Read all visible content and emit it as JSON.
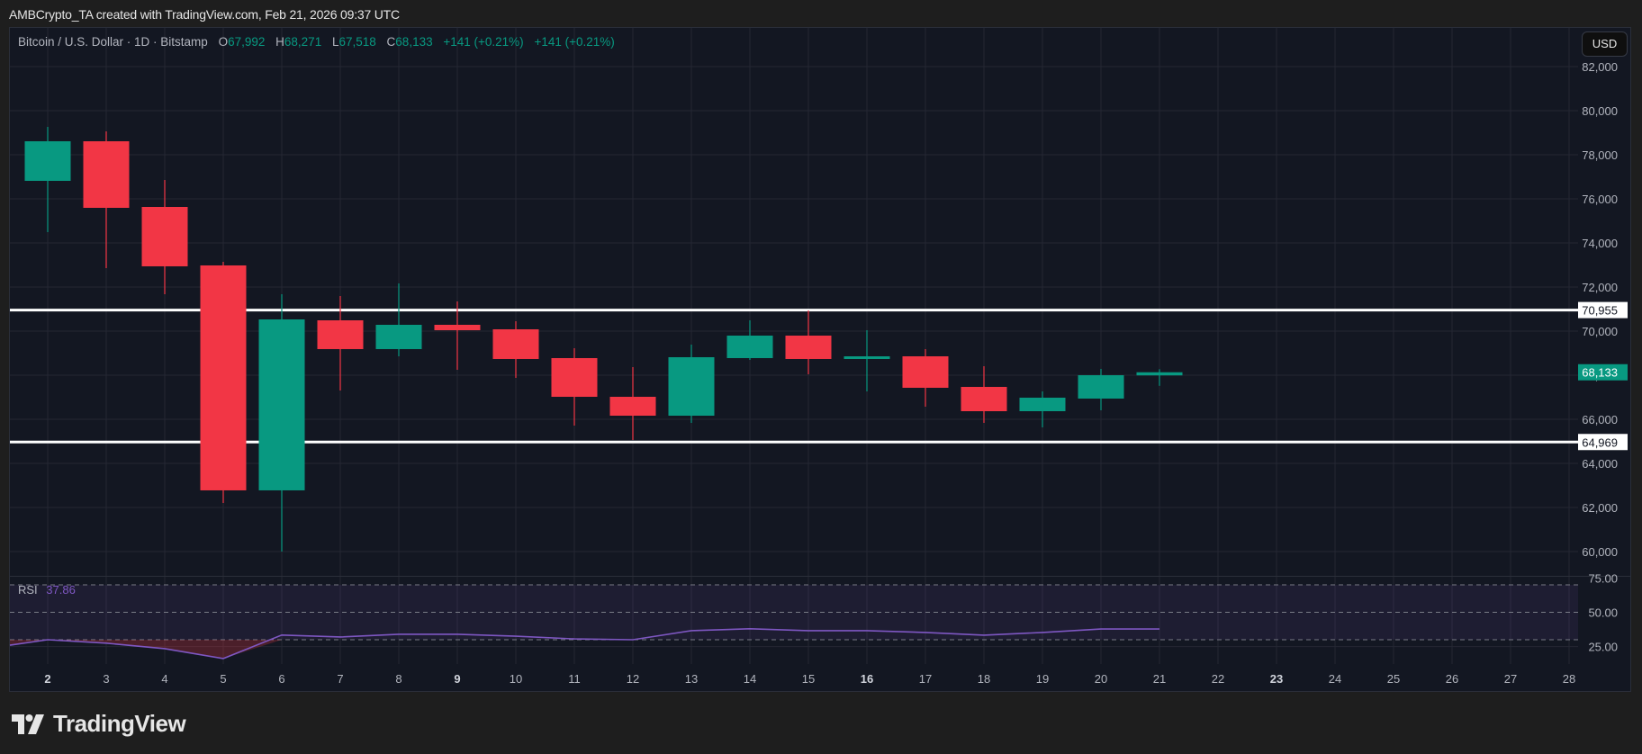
{
  "caption": "AMBCrypto_TA created with TradingView.com, Feb 21, 2026 09:37 UTC",
  "legend": {
    "symbol": "Bitcoin / U.S. Dollar · 1D · Bitstamp",
    "open_label": "O",
    "open": "67,992",
    "high_label": "H",
    "high": "68,271",
    "low_label": "L",
    "low": "67,518",
    "close_label": "C",
    "close": "68,133",
    "change1": "+141 (+0.21%)",
    "change2": "+141 (+0.21%)"
  },
  "currency_button": "USD",
  "rsi_legend": {
    "name": "RSI",
    "value": "37.86"
  },
  "brand": "TradingView",
  "colors": {
    "up": "#089981",
    "down": "#f23645",
    "background": "#131722",
    "grid": "#242733",
    "rsi_line": "#7e57c2",
    "level_line": "#ffffff",
    "axis_text": "#b2b5be"
  },
  "chart_data": {
    "type": "candlestick",
    "title": "Bitcoin / U.S. Dollar · 1D · Bitstamp",
    "xlabel": "",
    "ylabel": "USD",
    "x_tick_labels": [
      "2",
      "3",
      "4",
      "5",
      "6",
      "7",
      "8",
      "9",
      "10",
      "11",
      "12",
      "13",
      "14",
      "15",
      "16",
      "17",
      "18",
      "19",
      "20",
      "21",
      "22",
      "23",
      "24",
      "25",
      "26",
      "27",
      "28"
    ],
    "x_tick_bold": [
      "2",
      "9",
      "16",
      "23"
    ],
    "y_tick_labels": [
      "82,000",
      "80,000",
      "78,000",
      "76,000",
      "74,000",
      "72,000",
      "70,000",
      "68,000",
      "66,000",
      "64,000",
      "62,000",
      "60,000"
    ],
    "ylim": [
      59500,
      82800
    ],
    "grid": true,
    "candles": [
      {
        "day": 2,
        "open": 76816,
        "high": 79265,
        "low": 74490,
        "close": 78612
      },
      {
        "day": 3,
        "open": 78612,
        "high": 79061,
        "low": 72857,
        "close": 75592
      },
      {
        "day": 4,
        "open": 75633,
        "high": 76857,
        "low": 71673,
        "close": 72939
      },
      {
        "day": 5,
        "open": 72980,
        "high": 73143,
        "low": 62204,
        "close": 62776
      },
      {
        "day": 6,
        "open": 62776,
        "high": 71673,
        "low": 60000,
        "close": 70531
      },
      {
        "day": 7,
        "open": 70490,
        "high": 71592,
        "low": 67306,
        "close": 69184
      },
      {
        "day": 8,
        "open": 69184,
        "high": 72163,
        "low": 68857,
        "close": 70286
      },
      {
        "day": 9,
        "open": 70286,
        "high": 71347,
        "low": 68245,
        "close": 70041
      },
      {
        "day": 10,
        "open": 70082,
        "high": 70449,
        "low": 67878,
        "close": 68735
      },
      {
        "day": 11,
        "open": 68776,
        "high": 69225,
        "low": 65714,
        "close": 67020
      },
      {
        "day": 12,
        "open": 67020,
        "high": 68367,
        "low": 65061,
        "close": 66163
      },
      {
        "day": 13,
        "open": 66163,
        "high": 69388,
        "low": 65837,
        "close": 68816
      },
      {
        "day": 14,
        "open": 68776,
        "high": 70490,
        "low": 68694,
        "close": 69796
      },
      {
        "day": 15,
        "open": 69796,
        "high": 70939,
        "low": 68041,
        "close": 68735
      },
      {
        "day": 16,
        "open": 68735,
        "high": 70041,
        "low": 67265,
        "close": 68857
      },
      {
        "day": 17,
        "open": 68857,
        "high": 69184,
        "low": 66571,
        "close": 67429
      },
      {
        "day": 18,
        "open": 67469,
        "high": 68408,
        "low": 65837,
        "close": 66367
      },
      {
        "day": 19,
        "open": 66367,
        "high": 67265,
        "low": 65633,
        "close": 66980
      },
      {
        "day": 20,
        "open": 66939,
        "high": 68286,
        "low": 66408,
        "close": 68000
      },
      {
        "day": 21,
        "open": 67992,
        "high": 68271,
        "low": 67518,
        "close": 68133
      }
    ],
    "horizontal_levels": [
      {
        "price": 70955,
        "label": "70,955",
        "color": "#ffffff"
      },
      {
        "price": 64969,
        "label": "64,969",
        "color": "#ffffff"
      }
    ],
    "last_price": {
      "price": 68133,
      "label": "68,133",
      "color": "#089981"
    },
    "rsi": {
      "name": "RSI",
      "last": 37.86,
      "levels": [
        70,
        50,
        30
      ],
      "y_tick_labels": [
        "75.00",
        "50.00",
        "25.00"
      ],
      "series_start_value": 26,
      "values": [
        30,
        27.5,
        23.5,
        16.3,
        33.4,
        32,
        34,
        34,
        32.6,
        30.6,
        30,
        36.6,
        38,
        36.6,
        36.6,
        35.3,
        33.3,
        35.3,
        37.8,
        37.86
      ]
    }
  }
}
